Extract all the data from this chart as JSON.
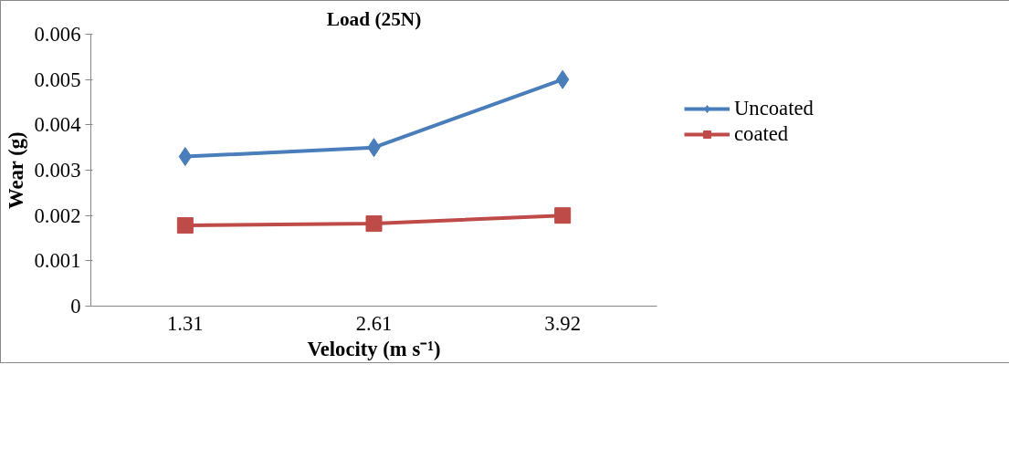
{
  "chart_data": {
    "type": "line",
    "title": "Load (25N)",
    "xlabel": "Velocity (m s⁻¹)",
    "ylabel": "Wear (g)",
    "categories": [
      "1.31",
      "2.61",
      "3.92"
    ],
    "series": [
      {
        "name": "Uncoated",
        "color": "#4a7ebb",
        "marker": "diamond",
        "values": [
          0.0033,
          0.0035,
          0.005
        ]
      },
      {
        "name": "coated",
        "color": "#be4b48",
        "marker": "square",
        "values": [
          0.00178,
          0.00182,
          0.002
        ]
      }
    ],
    "ylim": [
      0,
      0.006
    ],
    "yticks": [
      {
        "value": 0,
        "label": "0"
      },
      0.001,
      0.002,
      0.003,
      0.004,
      0.005,
      0.006
    ],
    "grid": false,
    "legend": "right"
  }
}
